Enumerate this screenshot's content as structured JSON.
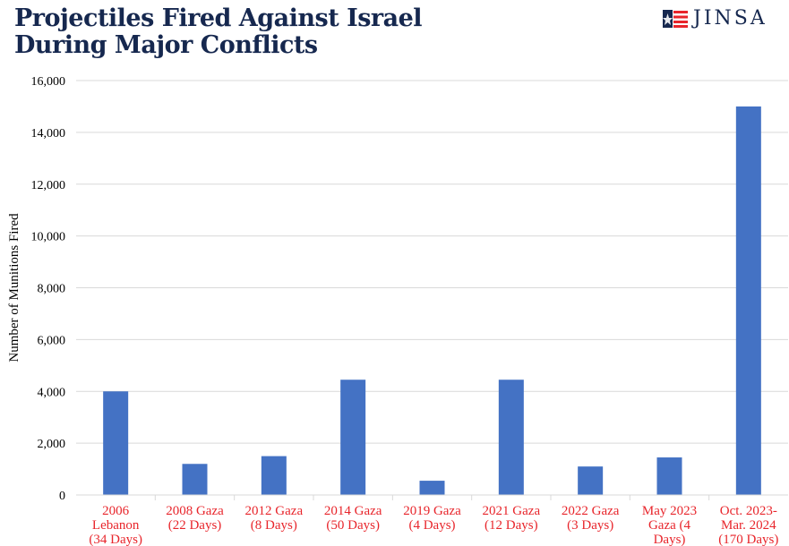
{
  "header": {
    "title_lines": [
      "Projectiles Fired Against Israel",
      "During Major Conflicts"
    ],
    "logo_text": "JINSA",
    "logo_icon": "flag-star-icon"
  },
  "chart_data": {
    "type": "bar",
    "categories": [
      [
        "2006",
        "Lebanon",
        "(34 Days)"
      ],
      [
        "2008 Gaza",
        "(22 Days)"
      ],
      [
        "2012 Gaza",
        "(8 Days)"
      ],
      [
        "2014 Gaza",
        "(50 Days)"
      ],
      [
        "2019 Gaza",
        "(4 Days)"
      ],
      [
        "2021 Gaza",
        "(12 Days)"
      ],
      [
        "2022 Gaza",
        "(3 Days)"
      ],
      [
        "May 2023",
        "Gaza (4",
        "Days)"
      ],
      [
        "Oct. 2023-",
        "Mar. 2024",
        "(170 Days)"
      ]
    ],
    "values": [
      4000,
      1200,
      1500,
      4450,
      550,
      4450,
      1100,
      1450,
      15000
    ],
    "ylabel": "Number of Munitions Fired",
    "ylim": [
      0,
      16000
    ],
    "yticks": [
      0,
      2000,
      4000,
      6000,
      8000,
      10000,
      12000,
      14000,
      16000
    ],
    "ytick_labels": [
      "0",
      "2,000",
      "4,000",
      "6,000",
      "8,000",
      "10,000",
      "12,000",
      "14,000",
      "16,000"
    ],
    "grid": true,
    "colors": {
      "bar": "#4472c4",
      "category_label": "#e8252b",
      "grid": "#d9d9d9",
      "title": "#16284f"
    }
  }
}
